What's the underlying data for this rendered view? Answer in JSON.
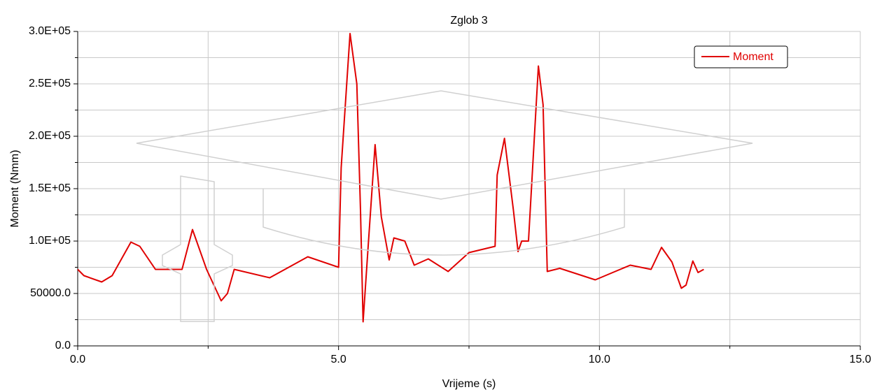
{
  "chart_data": {
    "type": "line",
    "title": "Zglob 3",
    "x_label": "Vrijeme (s)",
    "y_label": "Moment (Nmm)",
    "xlim": [
      0,
      15
    ],
    "ylim": [
      0,
      300000
    ],
    "xticks": [
      {
        "value": 0,
        "label": "0.0"
      },
      {
        "value": 5,
        "label": "5.0"
      },
      {
        "value": 10,
        "label": "10.0"
      },
      {
        "value": 15,
        "label": "15.0"
      }
    ],
    "x_minor_ticks": [
      2.5,
      7.5,
      12.5
    ],
    "yticks": [
      {
        "value": 0,
        "label": "0.0"
      },
      {
        "value": 50000,
        "label": "50000.0"
      },
      {
        "value": 100000,
        "label": "1.0E+05"
      },
      {
        "value": 150000,
        "label": "1.5E+05"
      },
      {
        "value": 200000,
        "label": "2.0E+05"
      },
      {
        "value": 250000,
        "label": "2.5E+05"
      },
      {
        "value": 300000,
        "label": "3.0E+05"
      }
    ],
    "y_minor_ticks": [
      25000,
      75000,
      125000,
      175000,
      225000,
      275000
    ],
    "grid": true,
    "legend": "upper right",
    "x": [
      0,
      0.12,
      0.46,
      0.66,
      1.02,
      1.19,
      1.49,
      2.0,
      2.2,
      2.47,
      2.75,
      2.87,
      3.0,
      3.68,
      4.41,
      5.0,
      5.05,
      5.22,
      5.35,
      5.42,
      5.47,
      5.57,
      5.7,
      5.82,
      5.97,
      6.06,
      6.27,
      6.45,
      6.72,
      7.1,
      7.5,
      8.0,
      8.04,
      8.18,
      8.35,
      8.44,
      8.51,
      8.64,
      8.83,
      8.92,
      9.0,
      9.24,
      9.92,
      10.59,
      10.99,
      11.19,
      11.39,
      11.57,
      11.66,
      11.79,
      11.89,
      12.0
    ],
    "series": [
      {
        "name": "Moment",
        "color": "#e00000",
        "values": [
          73000,
          67000,
          61000,
          67000,
          99000,
          95000,
          73000,
          73000,
          111000,
          73000,
          43000,
          50000,
          73000,
          65000,
          85000,
          75000,
          170000,
          298000,
          250000,
          130000,
          23000,
          97000,
          192000,
          123000,
          82000,
          103000,
          100000,
          77000,
          83000,
          71000,
          89000,
          95000,
          163000,
          198000,
          130000,
          90000,
          100000,
          100000,
          267000,
          230000,
          71000,
          74000,
          63000,
          77000,
          73000,
          94000,
          80000,
          55000,
          58000,
          81000,
          70000,
          73000
        ]
      }
    ]
  }
}
